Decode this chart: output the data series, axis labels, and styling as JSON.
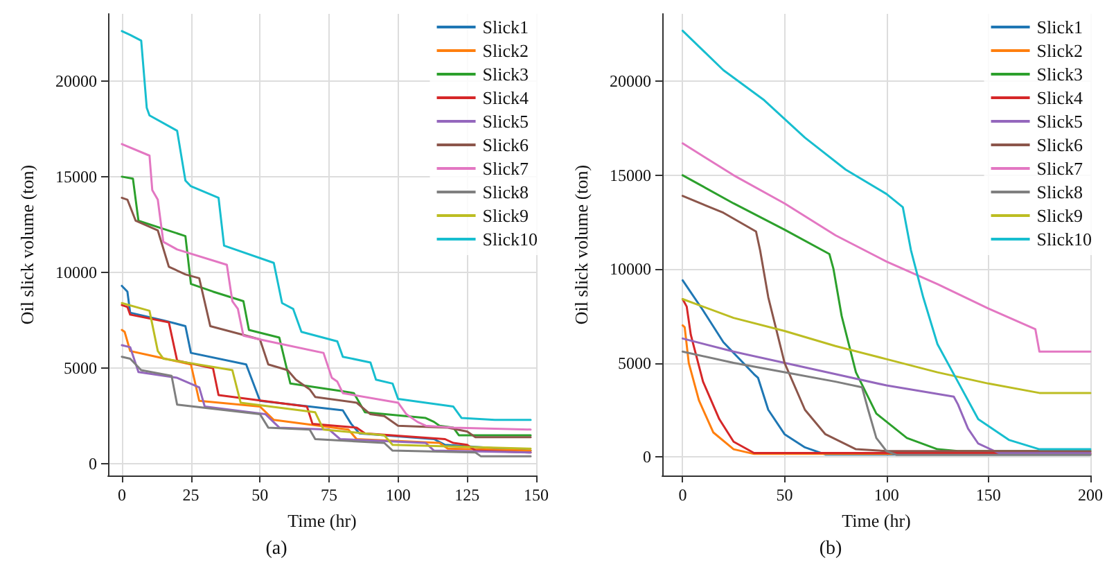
{
  "chart_data": [
    {
      "type": "line",
      "xlabel": "Time (hr)",
      "ylabel": "Oil slick volume (ton)",
      "annotations": [
        "(a)"
      ],
      "xlim": [
        -5,
        150
      ],
      "ylim": [
        -600,
        23500
      ],
      "xticks": [
        0,
        25,
        50,
        75,
        100,
        125,
        150
      ],
      "yticks": [
        0,
        5000,
        10000,
        15000,
        20000
      ],
      "grid": true,
      "legend": "top right",
      "marker": "none",
      "line_style": "solid",
      "series": [
        {
          "name": "Slick1",
          "color": "#1f77b4",
          "x": [
            0,
            2,
            3,
            15,
            23,
            25,
            45,
            50,
            80,
            83,
            86,
            113,
            117,
            148
          ],
          "values": [
            9300,
            9000,
            7900,
            7500,
            7200,
            5800,
            5200,
            3300,
            2800,
            2100,
            1600,
            1300,
            1000,
            700
          ]
        },
        {
          "name": "Slick2",
          "color": "#ff7f0e",
          "x": [
            0,
            1,
            3,
            25,
            28,
            50,
            55,
            82,
            85,
            115,
            118,
            148
          ],
          "values": [
            7000,
            6900,
            5900,
            5200,
            3300,
            3000,
            2300,
            1800,
            1300,
            1100,
            800,
            700
          ]
        },
        {
          "name": "Slick3",
          "color": "#2ca02c",
          "x": [
            0,
            4,
            6,
            23,
            25,
            33,
            44,
            46,
            57,
            61,
            80,
            84,
            88,
            110,
            113,
            115,
            120,
            122,
            148
          ],
          "values": [
            15000,
            14900,
            12700,
            11900,
            9400,
            9000,
            8500,
            7000,
            6600,
            4200,
            3800,
            3700,
            2700,
            2400,
            2200,
            2000,
            1900,
            1500,
            1500
          ]
        },
        {
          "name": "Slick4",
          "color": "#d62728",
          "x": [
            0,
            2,
            3,
            17,
            20,
            33,
            35,
            67,
            69,
            85,
            88,
            117,
            120,
            125,
            128,
            148
          ],
          "values": [
            8300,
            8200,
            7800,
            7400,
            5400,
            5000,
            3600,
            3000,
            2100,
            1900,
            1600,
            1300,
            1100,
            1000,
            700,
            600
          ]
        },
        {
          "name": "Slick5",
          "color": "#9467bd",
          "x": [
            0,
            3,
            6,
            20,
            28,
            30,
            52,
            57,
            75,
            79,
            110,
            113,
            148
          ],
          "values": [
            6200,
            6100,
            4800,
            4500,
            4000,
            3000,
            2600,
            1900,
            1800,
            1300,
            1100,
            700,
            600
          ]
        },
        {
          "name": "Slick6",
          "color": "#8c564b",
          "x": [
            0,
            2,
            5,
            13,
            17,
            23,
            28,
            32,
            45,
            50,
            53,
            60,
            63,
            68,
            70,
            85,
            90,
            95,
            100,
            118,
            125,
            128,
            148
          ],
          "values": [
            13900,
            13800,
            12700,
            12200,
            10300,
            9900,
            9700,
            7200,
            6700,
            6500,
            5200,
            4900,
            4400,
            3900,
            3500,
            3200,
            2600,
            2500,
            2000,
            1900,
            1700,
            1400,
            1400
          ]
        },
        {
          "name": "Slick7",
          "color": "#e377c2",
          "x": [
            0,
            10,
            11,
            13,
            15,
            20,
            38,
            40,
            42,
            44,
            50,
            73,
            76,
            78,
            80,
            100,
            103,
            107,
            110,
            120,
            148
          ],
          "values": [
            16700,
            16100,
            14300,
            13800,
            11600,
            11200,
            10400,
            8500,
            8100,
            6700,
            6500,
            5800,
            4500,
            4300,
            3700,
            3200,
            2600,
            2200,
            2000,
            1900,
            1800
          ]
        },
        {
          "name": "Slick8",
          "color": "#7f7f7f",
          "x": [
            0,
            3,
            7,
            18,
            20,
            50,
            53,
            68,
            70,
            95,
            98,
            128,
            130,
            148
          ],
          "values": [
            5600,
            5500,
            4900,
            4600,
            3100,
            2600,
            1900,
            1800,
            1300,
            1100,
            700,
            600,
            400,
            400
          ]
        },
        {
          "name": "Slick9",
          "color": "#bcbd22",
          "x": [
            0,
            10,
            13,
            15,
            40,
            43,
            70,
            73,
            95,
            98,
            148
          ],
          "values": [
            8400,
            8000,
            5900,
            5500,
            4900,
            3200,
            2700,
            1800,
            1500,
            1000,
            800
          ]
        },
        {
          "name": "Slick10",
          "color": "#17becf",
          "x": [
            0,
            3,
            7,
            9,
            10,
            20,
            23,
            25,
            35,
            37,
            55,
            58,
            62,
            65,
            78,
            80,
            90,
            92,
            98,
            100,
            120,
            123,
            135,
            148
          ],
          "values": [
            22600,
            22400,
            22100,
            18600,
            18200,
            17400,
            14800,
            14500,
            13900,
            11400,
            10500,
            8400,
            8100,
            6900,
            6400,
            5600,
            5300,
            4400,
            4200,
            3400,
            3000,
            2400,
            2300,
            2300
          ]
        }
      ]
    },
    {
      "type": "line",
      "xlabel": "Time (hr)",
      "ylabel": "Oil slick volume (ton)",
      "annotations": [
        "(b)"
      ],
      "xlim": [
        -10,
        200
      ],
      "ylim": [
        -1000,
        23600
      ],
      "xticks": [
        0,
        50,
        100,
        150,
        200
      ],
      "yticks": [
        0,
        5000,
        10000,
        15000,
        20000
      ],
      "grid": true,
      "legend": "top right",
      "marker": "none",
      "line_style": "solid",
      "series": [
        {
          "name": "Slick1",
          "color": "#1f77b4",
          "x": [
            0,
            10,
            20,
            35,
            37,
            42,
            50,
            60,
            70,
            200
          ],
          "values": [
            9400,
            7800,
            6100,
            4400,
            4200,
            2500,
            1200,
            500,
            120,
            120
          ]
        },
        {
          "name": "Slick2",
          "color": "#ff7f0e",
          "x": [
            0,
            1,
            3,
            8,
            15,
            25,
            35,
            200
          ],
          "values": [
            7000,
            6900,
            5000,
            3000,
            1300,
            400,
            150,
            150
          ]
        },
        {
          "name": "Slick3",
          "color": "#2ca02c",
          "x": [
            0,
            25,
            50,
            72,
            74,
            78,
            85,
            95,
            110,
            125,
            135,
            200
          ],
          "values": [
            15000,
            13500,
            12100,
            10800,
            10000,
            7500,
            4500,
            2300,
            1000,
            400,
            300,
            300
          ]
        },
        {
          "name": "Slick4",
          "color": "#d62728",
          "x": [
            0,
            2,
            4,
            10,
            18,
            25,
            35,
            200
          ],
          "values": [
            8400,
            8000,
            6500,
            4000,
            2000,
            800,
            200,
            200
          ]
        },
        {
          "name": "Slick5",
          "color": "#9467bd",
          "x": [
            0,
            25,
            50,
            75,
            100,
            133,
            135,
            140,
            145,
            155,
            200
          ],
          "values": [
            6300,
            5600,
            5000,
            4400,
            3800,
            3200,
            2800,
            1500,
            700,
            200,
            200
          ]
        },
        {
          "name": "Slick6",
          "color": "#8c564b",
          "x": [
            0,
            20,
            36,
            38,
            42,
            50,
            60,
            70,
            85,
            100,
            200
          ],
          "values": [
            13900,
            13000,
            12000,
            11000,
            8500,
            5000,
            2500,
            1200,
            400,
            300,
            300
          ]
        },
        {
          "name": "Slick7",
          "color": "#e377c2",
          "x": [
            0,
            25,
            50,
            75,
            100,
            125,
            150,
            173,
            175,
            200
          ],
          "values": [
            16700,
            15000,
            13500,
            11800,
            10400,
            9200,
            7900,
            6800,
            5600,
            5600
          ]
        },
        {
          "name": "Slick8",
          "color": "#7f7f7f",
          "x": [
            0,
            25,
            50,
            75,
            88,
            91,
            95,
            100,
            105,
            200
          ],
          "values": [
            5600,
            5000,
            4500,
            4000,
            3700,
            2500,
            1000,
            300,
            100,
            100
          ]
        },
        {
          "name": "Slick9",
          "color": "#bcbd22",
          "x": [
            0,
            25,
            50,
            75,
            100,
            125,
            150,
            175,
            200
          ],
          "values": [
            8400,
            7400,
            6700,
            5900,
            5200,
            4500,
            3900,
            3400,
            3400
          ]
        },
        {
          "name": "Slick10",
          "color": "#17becf",
          "x": [
            0,
            20,
            40,
            60,
            80,
            100,
            108,
            112,
            118,
            125,
            135,
            145,
            160,
            175,
            200
          ],
          "values": [
            22700,
            20600,
            19000,
            17000,
            15300,
            14000,
            13300,
            11000,
            8500,
            6000,
            4000,
            2000,
            900,
            400,
            400
          ]
        }
      ]
    }
  ]
}
